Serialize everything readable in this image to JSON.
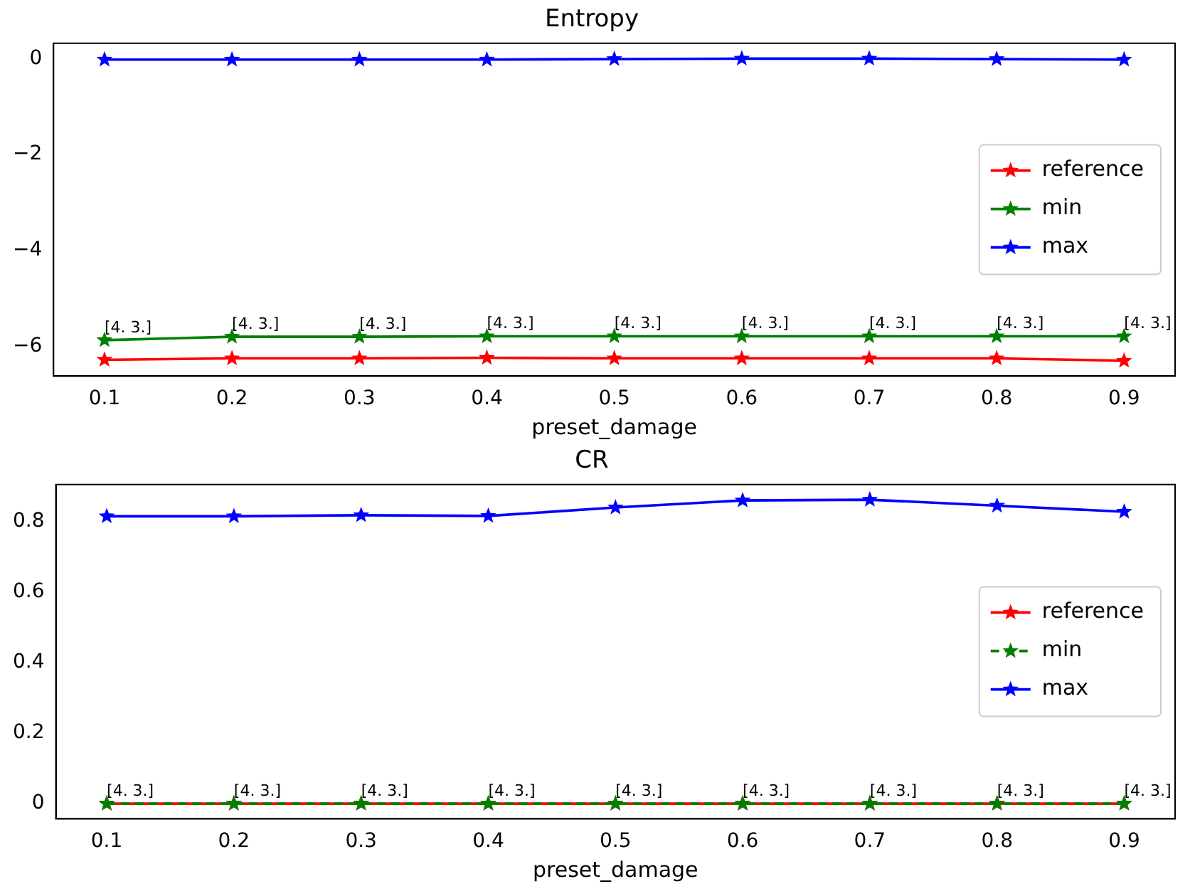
{
  "chart_data": [
    {
      "type": "line",
      "title": "Entropy",
      "xlabel": "preset_damage",
      "x": [
        0.1,
        0.2,
        0.3,
        0.4,
        0.5,
        0.6,
        0.7,
        0.8,
        0.9
      ],
      "series": [
        {
          "name": "reference",
          "color": "#ff0000",
          "values": [
            -6.28,
            -6.25,
            -6.25,
            -6.24,
            -6.25,
            -6.25,
            -6.25,
            -6.25,
            -6.3
          ]
        },
        {
          "name": "min",
          "color": "#008000",
          "values": [
            -5.87,
            -5.8,
            -5.8,
            -5.79,
            -5.79,
            -5.79,
            -5.79,
            -5.79,
            -5.79
          ]
        },
        {
          "name": "max",
          "color": "#0000ff",
          "values": [
            -0.02,
            -0.02,
            -0.02,
            -0.02,
            -0.01,
            0.0,
            0.0,
            -0.01,
            -0.02
          ]
        }
      ],
      "xlim": [
        0.06,
        0.94
      ],
      "xticks": [
        0.1,
        0.2,
        0.3,
        0.4,
        0.5,
        0.6,
        0.7,
        0.8,
        0.9
      ],
      "ylim": [
        -6.62,
        0.32
      ],
      "yticks": [
        -6,
        -4,
        -2,
        0
      ],
      "marker": "star",
      "line_style": "solid",
      "grid": false,
      "legend": "right",
      "annotations": [
        {
          "text": "[4. 3.]",
          "x": 0.1,
          "y": -5.87
        },
        {
          "text": "[4. 3.]",
          "x": 0.2,
          "y": -5.8
        },
        {
          "text": "[4. 3.]",
          "x": 0.3,
          "y": -5.8
        },
        {
          "text": "[4. 3.]",
          "x": 0.4,
          "y": -5.79
        },
        {
          "text": "[4. 3.]",
          "x": 0.5,
          "y": -5.79
        },
        {
          "text": "[4. 3.]",
          "x": 0.6,
          "y": -5.79
        },
        {
          "text": "[4. 3.]",
          "x": 0.7,
          "y": -5.79
        },
        {
          "text": "[4. 3.]",
          "x": 0.8,
          "y": -5.79
        },
        {
          "text": "[4. 3.]",
          "x": 0.9,
          "y": -5.79
        }
      ]
    },
    {
      "type": "line",
      "title": "CR",
      "xlabel": "preset_damage",
      "x": [
        0.1,
        0.2,
        0.3,
        0.4,
        0.5,
        0.6,
        0.7,
        0.8,
        0.9
      ],
      "series": [
        {
          "name": "reference",
          "color": "#ff0000",
          "values": [
            0,
            0,
            0,
            0,
            0,
            0,
            0,
            0,
            0
          ]
        },
        {
          "name": "min",
          "color": "#008000",
          "line_style": "dashed",
          "values": [
            0,
            0,
            0,
            0,
            0,
            0,
            0,
            0,
            0
          ]
        },
        {
          "name": "max",
          "color": "#0000ff",
          "values": [
            0.815,
            0.815,
            0.818,
            0.816,
            0.84,
            0.86,
            0.862,
            0.845,
            0.828
          ]
        }
      ],
      "xlim": [
        0.06,
        0.94
      ],
      "xticks": [
        0.1,
        0.2,
        0.3,
        0.4,
        0.5,
        0.6,
        0.7,
        0.8,
        0.9
      ],
      "ylim": [
        -0.043,
        0.905
      ],
      "yticks": [
        0.0,
        0.2,
        0.4,
        0.6,
        0.8
      ],
      "marker": "star",
      "line_style": "solid",
      "grid": false,
      "legend": "right",
      "annotations": [
        {
          "text": "[4. 3.]",
          "x": 0.1,
          "y": 0
        },
        {
          "text": "[4. 3.]",
          "x": 0.2,
          "y": 0
        },
        {
          "text": "[4. 3.]",
          "x": 0.3,
          "y": 0
        },
        {
          "text": "[4. 3.]",
          "x": 0.4,
          "y": 0
        },
        {
          "text": "[4. 3.]",
          "x": 0.5,
          "y": 0
        },
        {
          "text": "[4. 3.]",
          "x": 0.6,
          "y": 0
        },
        {
          "text": "[4. 3.]",
          "x": 0.7,
          "y": 0
        },
        {
          "text": "[4. 3.]",
          "x": 0.8,
          "y": 0
        },
        {
          "text": "[4. 3.]",
          "x": 0.9,
          "y": 0
        }
      ]
    }
  ]
}
